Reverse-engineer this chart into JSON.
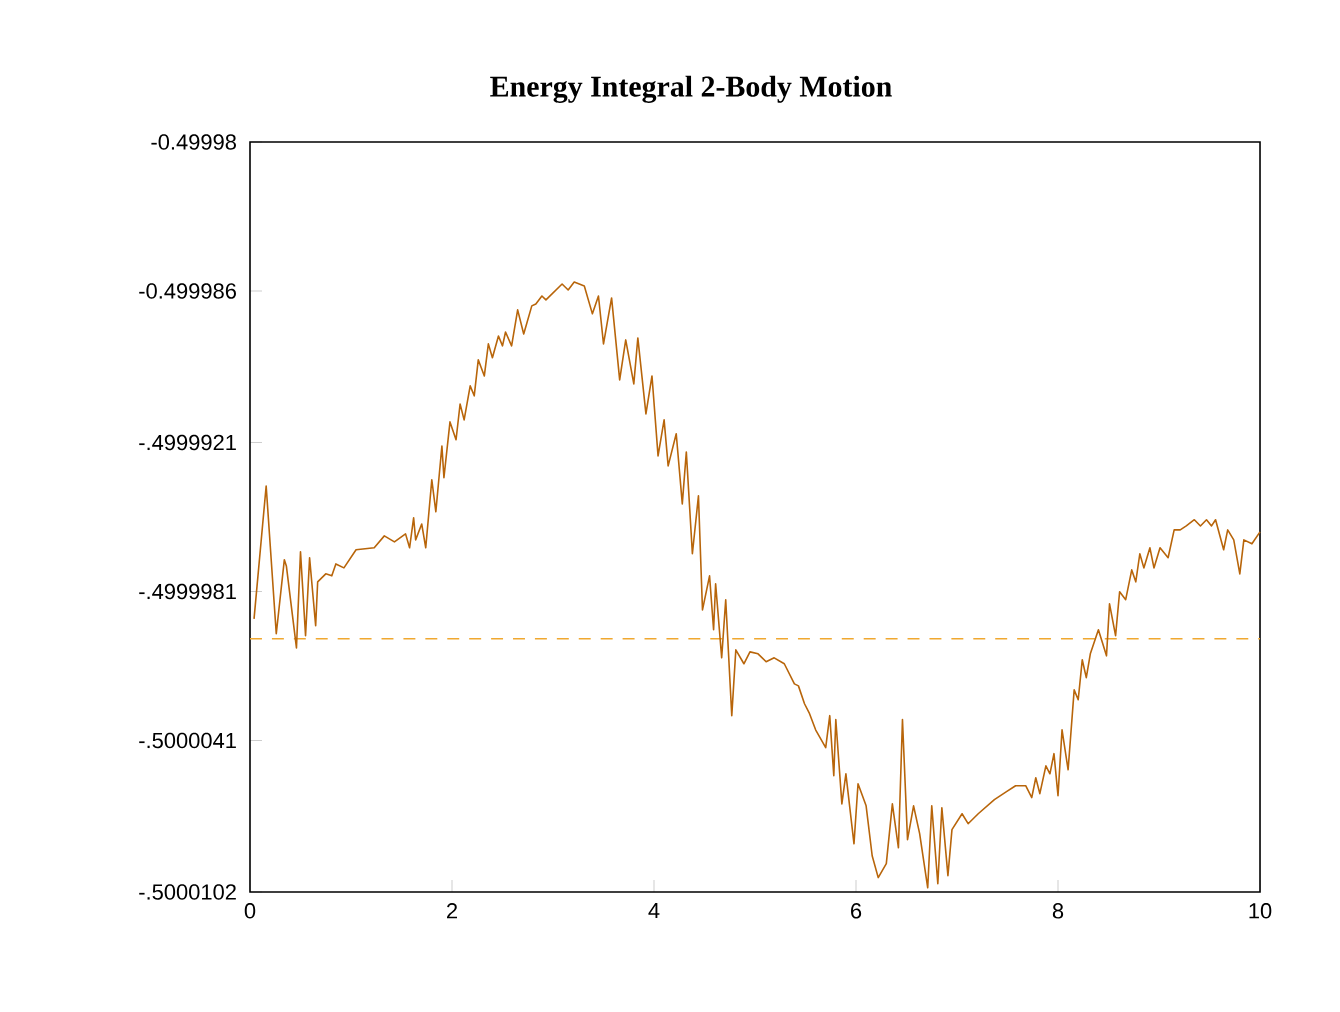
{
  "chart_data": {
    "type": "line",
    "title": "Energy Integral 2-Body Motion",
    "x": [
      0.04,
      0.16,
      0.26,
      0.34,
      0.36,
      0.46,
      0.5,
      0.55,
      0.59,
      0.65,
      0.67,
      0.75,
      0.81,
      0.85,
      0.93,
      1.05,
      1.23,
      1.33,
      1.43,
      1.54,
      1.58,
      1.62,
      1.64,
      1.7,
      1.74,
      1.8,
      1.84,
      1.9,
      1.92,
      1.98,
      2.04,
      2.08,
      2.12,
      2.18,
      2.22,
      2.26,
      2.32,
      2.36,
      2.4,
      2.46,
      2.5,
      2.53,
      2.59,
      2.65,
      2.71,
      2.79,
      2.83,
      2.89,
      2.93,
      3.01,
      3.09,
      3.15,
      3.21,
      3.31,
      3.39,
      3.45,
      3.5,
      3.58,
      3.66,
      3.72,
      3.8,
      3.84,
      3.92,
      3.98,
      4.04,
      4.1,
      4.14,
      4.22,
      4.28,
      4.32,
      4.38,
      4.44,
      4.48,
      4.55,
      4.59,
      4.61,
      4.67,
      4.71,
      4.77,
      4.81,
      4.89,
      4.95,
      5.03,
      5.11,
      5.19,
      5.29,
      5.39,
      5.43,
      5.49,
      5.54,
      5.6,
      5.7,
      5.74,
      5.78,
      5.8,
      5.86,
      5.9,
      5.98,
      6.02,
      6.1,
      6.16,
      6.22,
      6.3,
      6.36,
      6.42,
      6.46,
      6.51,
      6.57,
      6.63,
      6.71,
      6.75,
      6.81,
      6.85,
      6.91,
      6.95,
      7.05,
      7.11,
      7.21,
      7.37,
      7.49,
      7.58,
      7.68,
      7.74,
      7.78,
      7.82,
      7.88,
      7.92,
      7.96,
      8.0,
      8.04,
      8.1,
      8.16,
      8.2,
      8.24,
      8.28,
      8.32,
      8.4,
      8.48,
      8.51,
      8.57,
      8.61,
      8.67,
      8.73,
      8.77,
      8.81,
      8.85,
      8.91,
      8.95,
      9.01,
      9.09,
      9.15,
      9.21,
      9.27,
      9.35,
      9.41,
      9.47,
      9.52,
      9.56,
      9.64,
      9.68,
      9.74,
      9.8,
      9.84,
      9.92,
      10.0
    ],
    "series": [
      {
        "color": "#b8650a",
        "values": [
          -0.4999992,
          -0.49999385,
          -0.4999998,
          -0.49999682,
          -0.49999707,
          -0.50000037,
          -0.4999965,
          -0.49999988,
          -0.49999674,
          -0.49999948,
          -0.49999771,
          -0.49999739,
          -0.49999747,
          -0.49999699,
          -0.49999715,
          -0.49999642,
          -0.49999634,
          -0.49999586,
          -0.4999961,
          -0.49999578,
          -0.49999634,
          -0.49999513,
          -0.49999602,
          -0.49999538,
          -0.49999634,
          -0.4999936,
          -0.49999489,
          -0.49999224,
          -0.49999352,
          -0.49999127,
          -0.49999199,
          -0.49999055,
          -0.49999119,
          -0.49998982,
          -0.49999022,
          -0.49998877,
          -0.49998942,
          -0.49998813,
          -0.49998869,
          -0.49998781,
          -0.49998821,
          -0.49998765,
          -0.49998821,
          -0.49998676,
          -0.49998773,
          -0.4999866,
          -0.49998652,
          -0.4999862,
          -0.49998636,
          -0.49998604,
          -0.49998572,
          -0.49998596,
          -0.49998564,
          -0.4999858,
          -0.49998692,
          -0.4999862,
          -0.49998813,
          -0.49998628,
          -0.49998958,
          -0.49998797,
          -0.49998974,
          -0.49998789,
          -0.49999095,
          -0.49998942,
          -0.49999264,
          -0.49999119,
          -0.49999304,
          -0.49999175,
          -0.49999457,
          -0.49999248,
          -0.49999658,
          -0.49999425,
          -0.49999884,
          -0.49999747,
          -0.49999964,
          -0.49999779,
          -0.50000077,
          -0.49999843,
          -0.5000031,
          -0.50000045,
          -0.50000101,
          -0.50000053,
          -0.50000061,
          -0.50000093,
          -0.50000077,
          -0.50000101,
          -0.50000182,
          -0.5000019,
          -0.50000262,
          -0.50000302,
          -0.50000367,
          -0.50000439,
          -0.5000031,
          -0.50000552,
          -0.50000326,
          -0.50000665,
          -0.50000544,
          -0.50000826,
          -0.50000584,
          -0.50000673,
          -0.50000874,
          -0.50000962,
          -0.50000906,
          -0.50000665,
          -0.50000842,
          -0.50000326,
          -0.50000809,
          -0.50000673,
          -0.50000785,
          -0.50001003,
          -0.50000673,
          -0.50000987,
          -0.50000681,
          -0.50000954,
          -0.50000769,
          -0.50000705,
          -0.50000745,
          -0.50000705,
          -0.50000648,
          -0.50000616,
          -0.50000592,
          -0.50000592,
          -0.5000064,
          -0.5000056,
          -0.50000624,
          -0.50000512,
          -0.50000544,
          -0.50000463,
          -0.50000632,
          -0.50000367,
          -0.50000528,
          -0.50000206,
          -0.50000246,
          -0.50000085,
          -0.50000157,
          -0.50000061,
          -0.49999964,
          -0.50000069,
          -0.4999986,
          -0.49999988,
          -0.49999811,
          -0.49999843,
          -0.49999723,
          -0.49999771,
          -0.49999658,
          -0.49999715,
          -0.49999634,
          -0.49999715,
          -0.49999634,
          -0.49999674,
          -0.49999562,
          -0.49999562,
          -0.49999546,
          -0.49999521,
          -0.49999546,
          -0.49999521,
          -0.49999546,
          -0.49999521,
          -0.49999642,
          -0.49999562,
          -0.49999602,
          -0.49999739,
          -0.49999602,
          -0.49999618,
          -0.4999957
        ]
      }
    ],
    "xlim": [
      0,
      10
    ],
    "xticks": [
      0,
      2,
      4,
      6,
      8,
      10
    ],
    "ylim": [
      -0.5000102,
      -0.49998
    ],
    "yticks": [
      {
        "value": -0.5000102,
        "label": "-.5000102"
      },
      {
        "value": -0.5000041,
        "label": "-.5000041"
      },
      {
        "value": -0.4999981,
        "label": "-.4999981"
      },
      {
        "value": -0.4999921,
        "label": "-.4999921"
      },
      {
        "value": -0.499986,
        "label": "-0.499986"
      },
      -0.49998
    ],
    "ref_lines": [
      {
        "axis": "y",
        "value": -0.5,
        "color": "#f0a830",
        "line_style": "dashed"
      }
    ],
    "grid": false,
    "marker": "none",
    "line_style": "solid"
  }
}
